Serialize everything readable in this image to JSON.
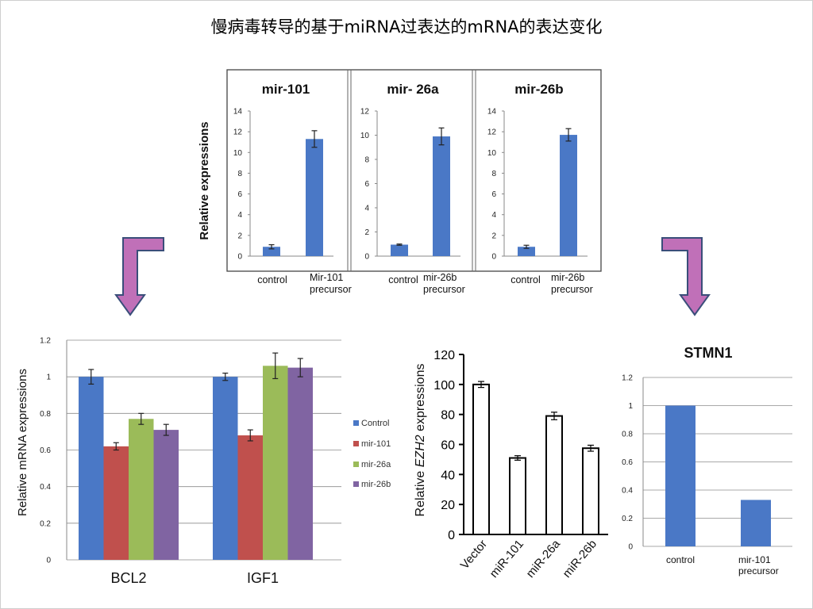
{
  "slide_title": "慢病毒转导的基于miRNA过表达的mRNA的表达变化",
  "colors": {
    "blue": "#4a78c6",
    "red": "#c0504d",
    "green": "#9bbb59",
    "purple": "#8064a2",
    "arrow_fill": "#c070b8",
    "arrow_stroke": "#3a4e7a"
  },
  "chart_data": [
    {
      "id": "top",
      "type": "bar",
      "ylabel": "Relative expressions",
      "panels": [
        {
          "title": "mir-101",
          "ylim": [
            0,
            14
          ],
          "yticks": [
            0,
            2,
            4,
            6,
            8,
            10,
            12,
            14
          ],
          "categories": [
            "control",
            "Mir-101\nprecursor"
          ],
          "values": [
            0.9,
            11.3
          ],
          "errors": [
            0.2,
            0.8
          ]
        },
        {
          "title": "mir- 26a",
          "ylim": [
            0,
            12
          ],
          "yticks": [
            0,
            2,
            4,
            6,
            8,
            10,
            12
          ],
          "categories": [
            "control",
            "mir-26b\nprecursor"
          ],
          "values": [
            0.95,
            9.9
          ],
          "errors": [
            0.05,
            0.7
          ]
        },
        {
          "title": "mir-26b",
          "ylim": [
            0,
            14
          ],
          "yticks": [
            0,
            2,
            4,
            6,
            8,
            10,
            12,
            14
          ],
          "categories": [
            "control",
            "mir-26b\nprecursor"
          ],
          "values": [
            0.9,
            11.7
          ],
          "errors": [
            0.15,
            0.6
          ]
        }
      ]
    },
    {
      "id": "bcl2_igf1",
      "type": "bar",
      "ylabel": "Relative mRNA expressions",
      "ylim": [
        0,
        1.2
      ],
      "yticks": [
        "0",
        "0.2",
        "0.4",
        "0.6",
        "0.8",
        "1",
        "1.2"
      ],
      "categories": [
        "BCL2",
        "IGF1"
      ],
      "legend_position": "right",
      "grid": true,
      "series": [
        {
          "name": "Control",
          "values": [
            1.0,
            1.0
          ],
          "errors": [
            0.04,
            0.02
          ]
        },
        {
          "name": "mir-101",
          "values": [
            0.62,
            0.68
          ],
          "errors": [
            0.02,
            0.03
          ]
        },
        {
          "name": "mir-26a",
          "values": [
            0.77,
            1.06
          ],
          "errors": [
            0.03,
            0.07
          ]
        },
        {
          "name": "mir-26b",
          "values": [
            0.71,
            1.05
          ],
          "errors": [
            0.03,
            0.05
          ]
        }
      ]
    },
    {
      "id": "ezh2",
      "type": "bar",
      "ylabel_parts": [
        "Relative ",
        "EZH2",
        " expressions"
      ],
      "ylim": [
        0,
        120
      ],
      "yticks": [
        0,
        20,
        40,
        60,
        80,
        100,
        120
      ],
      "categories": [
        "Vector",
        "miR-101",
        "miR-26a",
        "miR-26b"
      ],
      "values": [
        100,
        51,
        79,
        57.5
      ],
      "errors": [
        2,
        1.5,
        2.5,
        2
      ]
    },
    {
      "id": "stmn1",
      "type": "bar",
      "title": "STMN1",
      "ylim": [
        0,
        1.2
      ],
      "yticks": [
        "0",
        "0.2",
        "0.4",
        "0.6",
        "0.8",
        "1",
        "1.2"
      ],
      "categories": [
        "control",
        "mir-101\nprecursor"
      ],
      "values": [
        1.0,
        0.33
      ],
      "grid": true
    }
  ]
}
